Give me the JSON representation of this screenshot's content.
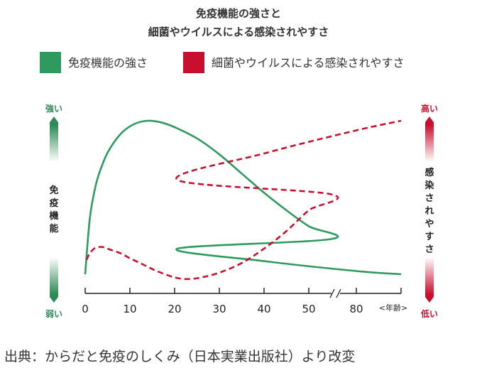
{
  "chart_data": {
    "type": "line",
    "title_line1": "免疫機能の強さと",
    "title_line2": "細菌やウイルスによる感染されやすさ",
    "series": [
      {
        "name": "免疫機能の強さ",
        "color": "#2e9a5e",
        "style": "solid",
        "axis": "left",
        "x": [
          0,
          1,
          2,
          3,
          5,
          8,
          11,
          14,
          17,
          20,
          25,
          30,
          35,
          40,
          45,
          50,
          55,
          60,
          70,
          80,
          85
        ],
        "y": [
          0.04,
          0.38,
          0.55,
          0.66,
          0.8,
          0.92,
          0.98,
          1.0,
          0.99,
          0.96,
          0.89,
          0.79,
          0.67,
          0.55,
          0.44,
          0.34,
          0.26,
          0.2,
          0.12,
          0.06,
          0.04
        ]
      },
      {
        "name": "細菌やウイルスによる感染されやすさ",
        "color": "#c8102e",
        "style": "dashed",
        "axis": "right",
        "x": [
          0.3,
          1,
          2,
          3,
          4,
          5,
          6,
          8,
          10,
          13,
          16,
          20,
          23,
          26,
          30,
          35,
          40,
          45,
          50,
          55,
          60,
          70,
          80,
          85
        ],
        "y": [
          0.13,
          0.17,
          0.2,
          0.21,
          0.21,
          0.2,
          0.19,
          0.17,
          0.14,
          0.1,
          0.06,
          0.02,
          0.01,
          0.02,
          0.05,
          0.11,
          0.2,
          0.31,
          0.44,
          0.54,
          0.63,
          0.8,
          0.94,
          1.0
        ]
      }
    ],
    "x_tick_labels": [
      "0",
      "10",
      "20",
      "30",
      "40",
      "50",
      "80"
    ],
    "x_unit": "年齢",
    "axis_break": true,
    "left_axis": {
      "label": "免疫機能",
      "top": "強い",
      "bottom": "弱い",
      "color": "#2e8b57"
    },
    "right_axis": {
      "label": "感染されやすさ",
      "top": "高い",
      "bottom": "低い",
      "color": "#c8102e"
    },
    "legend_position": "top"
  },
  "source": "出典：からだと免疫のしくみ（日本実業出版社）より改変"
}
